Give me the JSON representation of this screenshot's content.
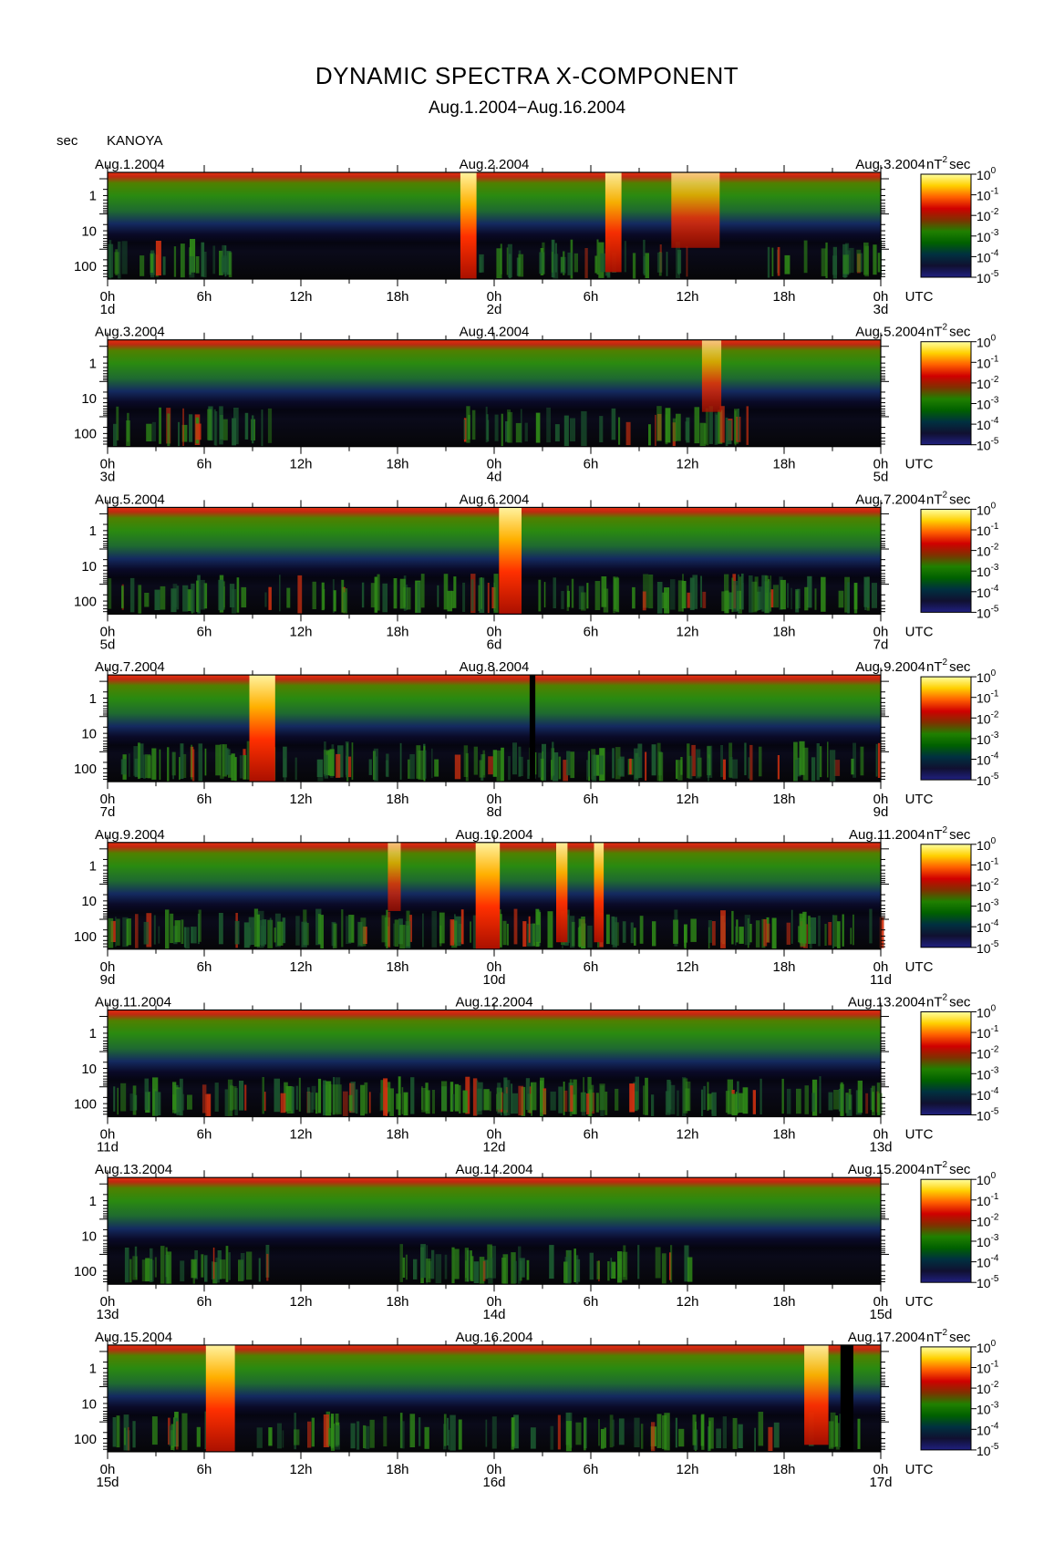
{
  "page": {
    "title": "DYNAMIC SPECTRA X-COMPONENT",
    "subtitle": "Aug.1.2004−Aug.16.2004",
    "unit_left": "sec",
    "station": "KANOYA",
    "utc_label": "UTC",
    "colorbar_unit": "nT",
    "colorbar_unit_exp": "2",
    "colorbar_unit_suffix": "sec"
  },
  "chart_data": {
    "type": "heatmap",
    "description_axes": {
      "y_period_ticks": [
        "1",
        "10",
        "100"
      ],
      "y_scale": "log (period, sec)",
      "x_ticks": [
        "0h",
        "6h",
        "12h",
        "18h",
        "0h",
        "6h",
        "12h",
        "18h",
        "0h"
      ],
      "colorbar_ticks": [
        {
          "base": "10",
          "exp": "0"
        },
        {
          "base": "10",
          "exp": "-1"
        },
        {
          "base": "10",
          "exp": "-2"
        },
        {
          "base": "10",
          "exp": "-3"
        },
        {
          "base": "10",
          "exp": "-4"
        },
        {
          "base": "10",
          "exp": "-5"
        }
      ],
      "colorbar_scale": "log (power, nT^2 sec)",
      "colorbar_colors": [
        "#ffffa0",
        "#ffd000",
        "#ff6000",
        "#d00000",
        "#803000",
        "#208000",
        "#006000",
        "#003040",
        "#101030",
        "#202080"
      ]
    },
    "panels": [
      {
        "left_date": "Aug.1.2004",
        "mid_date": "Aug.2.2004",
        "right_date": "Aug.3.2004",
        "day_labels": [
          "1d",
          "2d",
          "3d"
        ],
        "events": [
          {
            "t": 22.4,
            "w": 1.0,
            "intensity": 1.0
          },
          {
            "t": 31.4,
            "w": 1.0,
            "intensity": 0.9
          },
          {
            "t": 36.5,
            "w": 3.0,
            "intensity": 0.55
          }
        ],
        "low_activity": [
          [
            0,
            8,
            0.6
          ],
          [
            22,
            36,
            0.55
          ],
          [
            40,
            48,
            0.5
          ]
        ],
        "gaps": []
      },
      {
        "left_date": "Aug.3.2004",
        "mid_date": "Aug.4.2004",
        "right_date": "Aug.5.2004",
        "day_labels": [
          "3d",
          "4d",
          "5d"
        ],
        "events": [
          {
            "t": 37.5,
            "w": 1.2,
            "intensity": 0.5
          }
        ],
        "low_activity": [
          [
            0,
            10,
            0.5
          ],
          [
            22,
            40,
            0.5
          ]
        ],
        "gaps": []
      },
      {
        "left_date": "Aug.5.2004",
        "mid_date": "Aug.6.2004",
        "right_date": "Aug.7.2004",
        "day_labels": [
          "5d",
          "6d",
          "7d"
        ],
        "events": [
          {
            "t": 25.0,
            "w": 1.4,
            "intensity": 1.0
          }
        ],
        "low_activity": [
          [
            0,
            48,
            0.55
          ]
        ],
        "gaps": []
      },
      {
        "left_date": "Aug.7.2004",
        "mid_date": "Aug.8.2004",
        "right_date": "Aug.9.2004",
        "day_labels": [
          "7d",
          "8d",
          "9d"
        ],
        "events": [
          {
            "t": 9.6,
            "w": 1.6,
            "intensity": 1.0
          }
        ],
        "low_activity": [
          [
            0,
            48,
            0.6
          ]
        ],
        "gaps": [
          {
            "t": 26.2,
            "w": 0.35
          }
        ]
      },
      {
        "left_date": "Aug.9.2004",
        "mid_date": "Aug.10.2004",
        "right_date": "Aug.11.2004",
        "day_labels": [
          "9d",
          "10d",
          "11d"
        ],
        "events": [
          {
            "t": 23.6,
            "w": 1.5,
            "intensity": 1.0
          },
          {
            "t": 28.2,
            "w": 0.7,
            "intensity": 0.9
          },
          {
            "t": 30.5,
            "w": 0.6,
            "intensity": 0.9
          },
          {
            "t": 17.8,
            "w": 0.8,
            "intensity": 0.45
          }
        ],
        "low_activity": [
          [
            0,
            48,
            0.6
          ]
        ],
        "gaps": []
      },
      {
        "left_date": "Aug.11.2004",
        "mid_date": "Aug.12.2004",
        "right_date": "Aug.13.2004",
        "day_labels": [
          "11d",
          "12d",
          "13d"
        ],
        "events": [],
        "low_activity": [
          [
            0,
            48,
            0.7
          ]
        ],
        "gaps": []
      },
      {
        "left_date": "Aug.13.2004",
        "mid_date": "Aug.14.2004",
        "right_date": "Aug.15.2004",
        "day_labels": [
          "13d",
          "14d",
          "15d"
        ],
        "events": [],
        "low_activity": [
          [
            0,
            10,
            0.6
          ],
          [
            18,
            36,
            0.55
          ]
        ],
        "gaps": []
      },
      {
        "left_date": "Aug.15.2004",
        "mid_date": "Aug.16.2004",
        "right_date": "Aug.17.2004",
        "day_labels": [
          "15d",
          "16d",
          "17d"
        ],
        "events": [
          {
            "t": 7.0,
            "w": 1.8,
            "intensity": 1.0
          },
          {
            "t": 44.0,
            "w": 1.5,
            "intensity": 0.9
          }
        ],
        "low_activity": [
          [
            0,
            48,
            0.4
          ]
        ],
        "gaps": [
          {
            "t": 45.5,
            "w": 0.8
          }
        ]
      }
    ]
  }
}
